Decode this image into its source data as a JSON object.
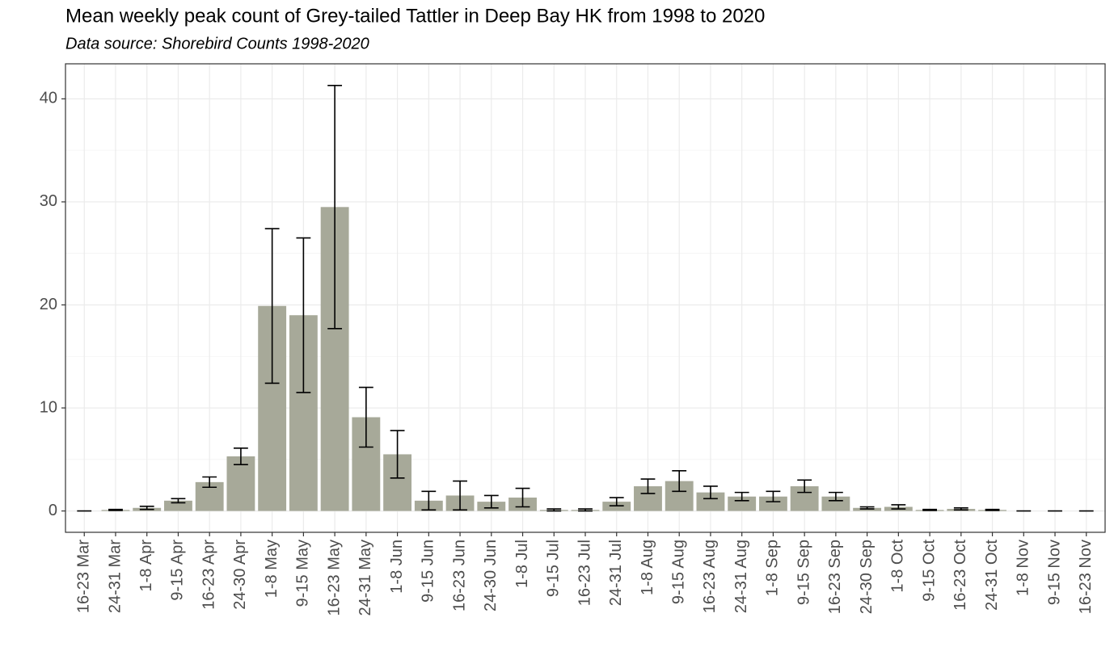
{
  "chart_data": {
    "type": "bar",
    "title": "Mean weekly peak count of Grey-tailed Tattler in Deep Bay HK from 1998 to 2020",
    "subtitle": "Data source: Shorebird Counts 1998-2020",
    "categories": [
      "16-23 Mar",
      "24-31 Mar",
      "1-8 Apr",
      "9-15 Apr",
      "16-23 Apr",
      "24-30 Apr",
      "1-8 May",
      "9-15 May",
      "16-23 May",
      "24-31 May",
      "1-8 Jun",
      "9-15 Jun",
      "16-23 Jun",
      "24-30 Jun",
      "1-8 Jul",
      "9-15 Jul",
      "16-23 Jul",
      "24-31 Jul",
      "1-8 Aug",
      "9-15 Aug",
      "16-23 Aug",
      "24-31 Aug",
      "1-8 Sep",
      "9-15 Sep",
      "16-23 Sep",
      "24-30 Sep",
      "1-8 Oct",
      "9-15 Oct",
      "16-23 Oct",
      "24-31 Oct",
      "1-8 Nov",
      "9-15 Nov",
      "16-23 Nov"
    ],
    "values": [
      0,
      0.1,
      0.3,
      1.0,
      2.8,
      5.3,
      19.9,
      19.0,
      29.5,
      9.1,
      5.5,
      1.0,
      1.5,
      0.9,
      1.3,
      0.1,
      0.1,
      0.9,
      2.4,
      2.9,
      1.8,
      1.4,
      1.4,
      2.4,
      1.4,
      0.3,
      0.4,
      0.1,
      0.2,
      0.1,
      0,
      0,
      0
    ],
    "errors": [
      0,
      0.05,
      0.15,
      0.2,
      0.5,
      0.8,
      7.5,
      7.5,
      11.8,
      2.9,
      2.3,
      0.9,
      1.4,
      0.6,
      0.9,
      0.1,
      0.1,
      0.4,
      0.7,
      1.0,
      0.6,
      0.4,
      0.5,
      0.6,
      0.4,
      0.1,
      0.2,
      0.05,
      0.1,
      0.05,
      0,
      0,
      0
    ],
    "color": "#a7a999",
    "ylim": [
      -2.07,
      43.4
    ],
    "yticks": [
      0,
      10,
      20,
      30,
      40
    ],
    "yminor": [
      5,
      15,
      25,
      35
    ],
    "grid": true
  }
}
